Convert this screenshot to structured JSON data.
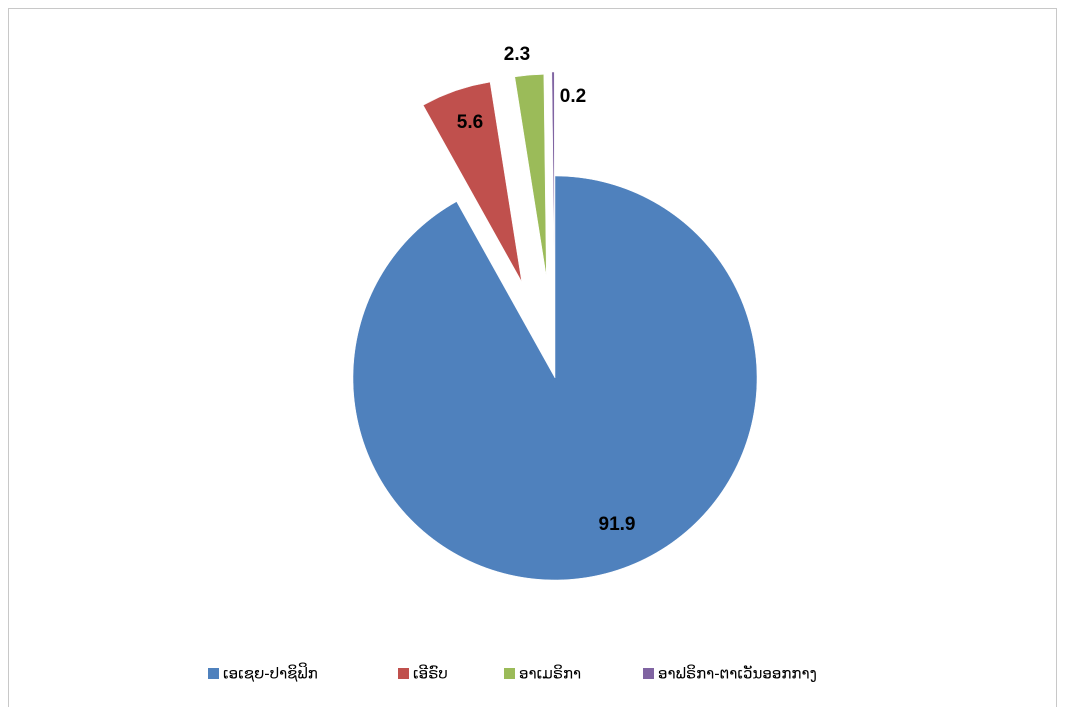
{
  "chart_data": {
    "type": "pie",
    "categories": [
      "ເອເຊຍ-ປາຊິຟິກ",
      "ເອີຣົບ",
      "ອາເມຣິກາ",
      "ອາຟຣິກາ-ຕາເວັນອອກກາງ"
    ],
    "values": [
      91.9,
      5.6,
      2.3,
      0.2
    ],
    "colors": [
      "#4f81bd",
      "#c0504d",
      "#9bbb59",
      "#8064a2"
    ],
    "legend": "bottom"
  }
}
